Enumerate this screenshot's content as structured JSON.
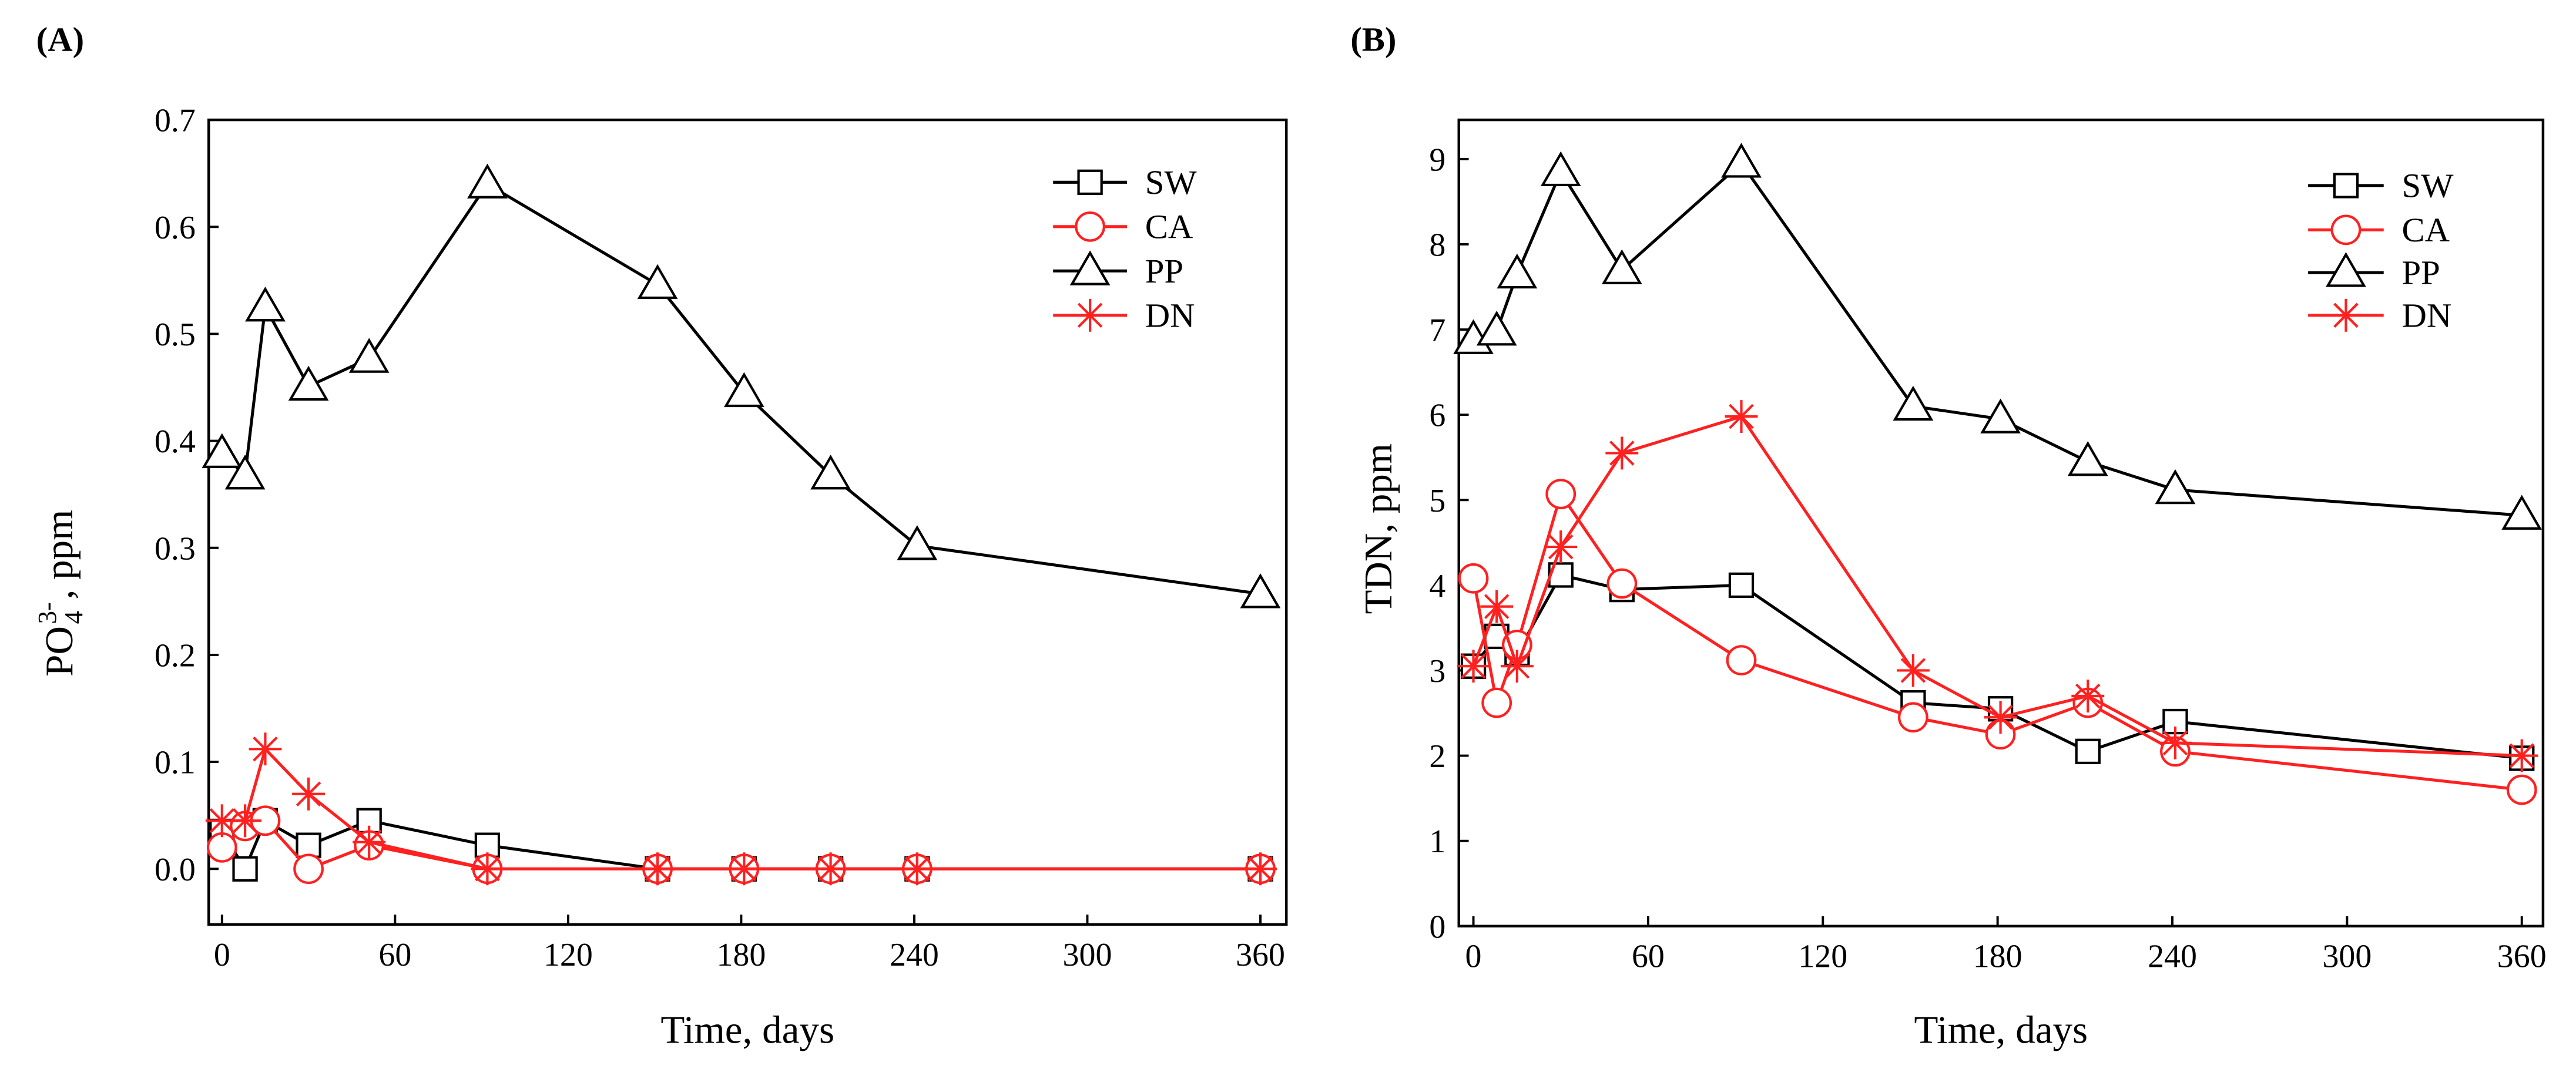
{
  "chart_data": [
    {
      "type": "line",
      "panel_label": "(A)",
      "title": "",
      "xlabel": "Time, days",
      "ylabel": {
        "main": "PO",
        "sub": "4",
        "sup": "3-",
        "suffix": ", ppm"
      },
      "xlim": [
        -4.6,
        369
      ],
      "ylim": [
        -0.052,
        0.7
      ],
      "xticks": [
        0,
        60,
        120,
        180,
        240,
        300,
        360
      ],
      "xtick_labels": [
        "0",
        "60",
        "120",
        "180",
        "240",
        "300",
        "360"
      ],
      "yticks": [
        0,
        0.1,
        0.2,
        0.3,
        0.4,
        0.5,
        0.6,
        0.7
      ],
      "ytick_labels": [
        "0.0",
        "0.1",
        "0.2",
        "0.3",
        "0.4",
        "0.5",
        "0.6",
        "0.7"
      ],
      "grid": false,
      "legend_position": "top-right",
      "x": [
        0,
        8,
        15,
        30,
        51,
        92,
        151,
        181,
        211,
        241,
        360
      ],
      "series": [
        {
          "name": "SW",
          "color": "#000000",
          "marker": "square",
          "values": [
            0.035,
            0.0,
            0.045,
            0.022,
            0.045,
            0.022,
            0.0,
            0.0,
            0.0,
            0.0,
            0.0
          ]
        },
        {
          "name": "CA",
          "color": "#ff2020",
          "marker": "circle",
          "values": [
            0.02,
            0.04,
            0.045,
            0.0,
            0.022,
            0.0,
            0.0,
            0.0,
            0.0,
            0.0,
            0.0
          ]
        },
        {
          "name": "PP",
          "color": "#000000",
          "marker": "triangle",
          "values": [
            0.388,
            0.368,
            0.525,
            0.451,
            0.477,
            0.64,
            0.546,
            0.445,
            0.368,
            0.302,
            0.257
          ]
        },
        {
          "name": "DN",
          "color": "#ff2020",
          "marker": "asterisk",
          "values": [
            0.045,
            0.045,
            0.112,
            0.07,
            0.025,
            0.0,
            0.0,
            0.0,
            0.0,
            0.0,
            0.0
          ]
        }
      ]
    },
    {
      "type": "line",
      "panel_label": "(B)",
      "title": "",
      "xlabel": "Time, days",
      "ylabel": "TDN, ppm",
      "xlim": [
        -5,
        367.3
      ],
      "ylim": [
        0,
        9.46
      ],
      "xticks": [
        0,
        60,
        120,
        180,
        240,
        300,
        360
      ],
      "xtick_labels": [
        "0",
        "60",
        "120",
        "180",
        "240",
        "300",
        "360"
      ],
      "yticks": [
        0,
        1,
        2,
        3,
        4,
        5,
        6,
        7,
        8,
        9
      ],
      "ytick_labels": [
        "0",
        "1",
        "2",
        "3",
        "4",
        "5",
        "6",
        "7",
        "8",
        "9"
      ],
      "grid": false,
      "legend_position": "top-right",
      "x": [
        0,
        8,
        15,
        30,
        51,
        92,
        151,
        181,
        211,
        241,
        360
      ],
      "series": [
        {
          "name": "SW",
          "color": "#000000",
          "marker": "square",
          "values": [
            3.05,
            3.4,
            3.2,
            4.12,
            3.95,
            4.0,
            2.62,
            2.55,
            2.05,
            2.4,
            1.97
          ]
        },
        {
          "name": "CA",
          "color": "#ff2020",
          "marker": "circle",
          "values": [
            4.08,
            2.62,
            3.3,
            5.07,
            4.02,
            3.12,
            2.45,
            2.25,
            2.62,
            2.05,
            1.6
          ]
        },
        {
          "name": "PP",
          "color": "#000000",
          "marker": "triangle",
          "values": [
            6.88,
            6.98,
            7.65,
            8.85,
            7.7,
            8.95,
            6.1,
            5.95,
            5.45,
            5.12,
            4.82
          ]
        },
        {
          "name": "DN",
          "color": "#ff2020",
          "marker": "asterisk",
          "values": [
            3.05,
            3.75,
            3.05,
            4.45,
            5.55,
            5.98,
            3.0,
            2.45,
            2.7,
            2.15,
            2.0
          ]
        }
      ]
    }
  ]
}
